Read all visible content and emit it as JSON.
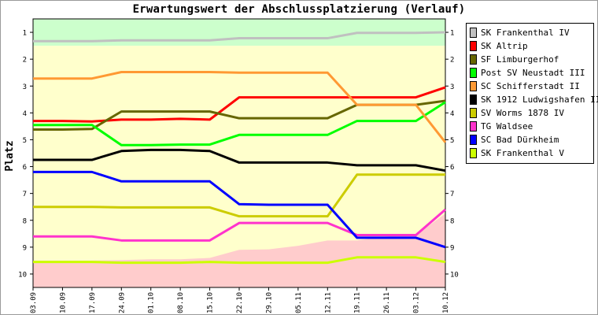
{
  "chart_data": {
    "type": "line",
    "title": "Erwartungswert der Abschlussplatzierung (Verlauf)",
    "xlabel": "",
    "ylabel": "Platz",
    "ylim": [
      10.5,
      0.5
    ],
    "y_inverted": true,
    "yticks": [
      "1",
      "2",
      "3",
      "4",
      "5",
      "6",
      "7",
      "8",
      "9",
      "10"
    ],
    "categories": [
      "03.09",
      "10.09",
      "17.09",
      "24.09",
      "01.10",
      "08.10",
      "15.10",
      "22.10",
      "29.10",
      "05.11",
      "12.11",
      "19.11",
      "26.11",
      "03.12",
      "10.12"
    ],
    "grid": false,
    "legend_position": "right",
    "background_bands": [
      {
        "from": 0.5,
        "to": 1.5,
        "color": "#ccffcc"
      },
      {
        "from": 1.5,
        "to": 9.5,
        "color": "#ffffcc"
      },
      {
        "from": 9.5,
        "to": 10.5,
        "color": "#ffcccc"
      }
    ],
    "relegation_area": {
      "color": "#ffcccc",
      "upper": [
        9.6,
        9.55,
        9.5,
        9.48,
        9.45,
        9.45,
        9.4,
        9.1,
        9.08,
        8.95,
        8.75,
        8.75,
        8.6,
        8.55,
        7.75
      ]
    },
    "series": [
      {
        "name": "SK Frankenthal IV",
        "color": "#c0c0c0",
        "values": [
          1.33,
          1.33,
          1.33,
          1.3,
          1.3,
          1.3,
          1.3,
          1.22,
          1.22,
          1.22,
          1.22,
          1.02,
          1.02,
          1.02,
          1.0
        ]
      },
      {
        "name": "SK Altrip",
        "color": "#ff0000",
        "values": [
          4.3,
          4.3,
          4.32,
          4.25,
          4.25,
          4.22,
          4.25,
          3.42,
          3.42,
          3.42,
          3.42,
          3.42,
          3.42,
          3.42,
          3.05
        ]
      },
      {
        "name": "SF Limburgerhof",
        "color": "#666600",
        "values": [
          4.62,
          4.62,
          4.6,
          3.95,
          3.95,
          3.95,
          3.95,
          4.2,
          4.2,
          4.2,
          4.2,
          3.7,
          3.7,
          3.7,
          3.55
        ]
      },
      {
        "name": "Post SV Neustadt III",
        "color": "#00ff00",
        "values": [
          4.45,
          4.45,
          4.45,
          5.2,
          5.2,
          5.18,
          5.18,
          4.82,
          4.82,
          4.82,
          4.82,
          4.3,
          4.3,
          4.3,
          3.6
        ]
      },
      {
        "name": "SC Schifferstadt II",
        "color": "#ff9933",
        "values": [
          2.72,
          2.72,
          2.72,
          2.48,
          2.48,
          2.48,
          2.48,
          2.5,
          2.5,
          2.5,
          2.5,
          3.7,
          3.7,
          3.7,
          5.1
        ]
      },
      {
        "name": "SK 1912 Ludwigshafen II",
        "color": "#000000",
        "values": [
          5.75,
          5.75,
          5.75,
          5.42,
          5.38,
          5.38,
          5.42,
          5.85,
          5.85,
          5.85,
          5.85,
          5.95,
          5.95,
          5.95,
          6.15
        ]
      },
      {
        "name": "SV Worms 1878 IV",
        "color": "#cccc00",
        "values": [
          7.5,
          7.5,
          7.5,
          7.52,
          7.52,
          7.52,
          7.52,
          7.85,
          7.85,
          7.85,
          7.85,
          6.3,
          6.3,
          6.3,
          6.3
        ]
      },
      {
        "name": "TG Waldsee",
        "color": "#ff33cc",
        "values": [
          8.6,
          8.6,
          8.6,
          8.75,
          8.75,
          8.75,
          8.75,
          8.1,
          8.1,
          8.1,
          8.1,
          8.55,
          8.55,
          8.55,
          7.6
        ]
      },
      {
        "name": "SC Bad Dürkheim",
        "color": "#0000ff",
        "values": [
          6.2,
          6.2,
          6.2,
          6.55,
          6.55,
          6.55,
          6.55,
          7.4,
          7.42,
          7.42,
          7.42,
          8.65,
          8.65,
          8.65,
          9.0
        ]
      },
      {
        "name": "SK Frankenthal V",
        "color": "#ccff00",
        "values": [
          9.55,
          9.55,
          9.55,
          9.58,
          9.58,
          9.58,
          9.55,
          9.58,
          9.58,
          9.58,
          9.58,
          9.38,
          9.38,
          9.38,
          9.55
        ]
      }
    ]
  }
}
